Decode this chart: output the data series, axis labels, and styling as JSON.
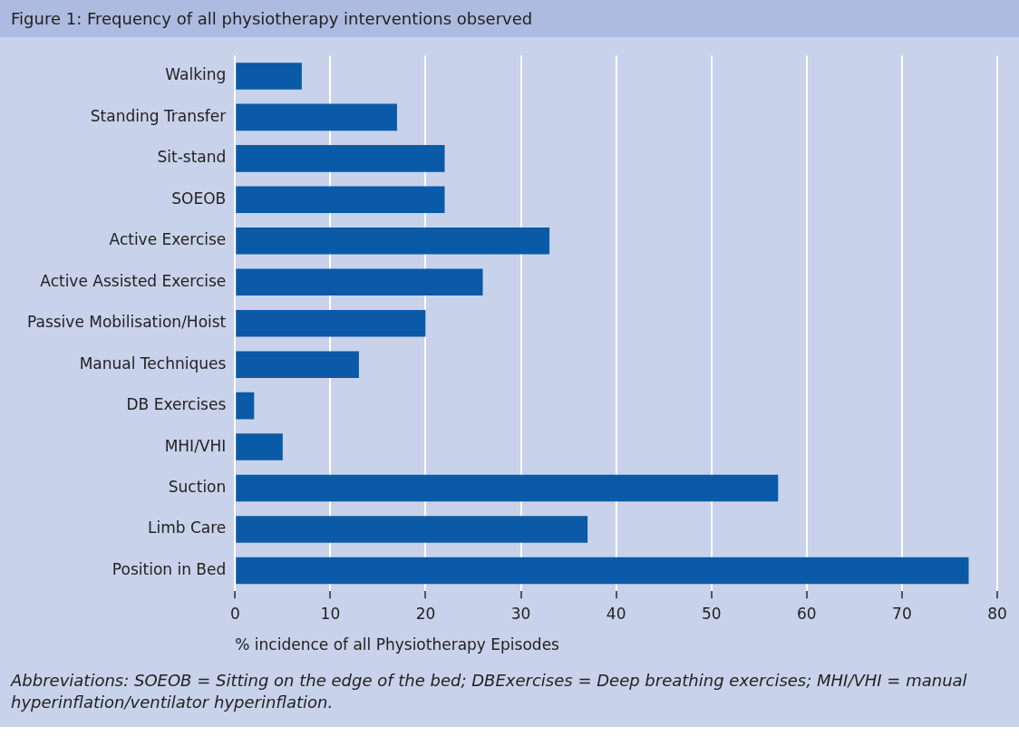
{
  "chart_data": {
    "type": "bar",
    "orientation": "horizontal",
    "title": "Figure 1: Frequency of all physiotherapy interventions observed",
    "xlabel": "% incidence of all Physiotherapy Episodes",
    "categories": [
      "Walking",
      "Standing Transfer",
      "Sit-stand",
      "SOEOB",
      "Active Exercise",
      "Active Assisted Exercise",
      "Passive Mobilisation/Hoist",
      "Manual Techniques",
      "DB Exercises",
      "MHI/VHI",
      "Suction",
      "Limb Care",
      "Position in Bed"
    ],
    "values": [
      7,
      17,
      22,
      22,
      33,
      26,
      20,
      13,
      2,
      5,
      57,
      37,
      77
    ],
    "color": "#0a5aa8",
    "xlim": [
      0,
      80
    ],
    "xticks": [
      0,
      10,
      20,
      30,
      40,
      50,
      60,
      70,
      80
    ],
    "grid": "x",
    "legend": false,
    "annotations": [
      "Abbreviations: SOEOB = Sitting on the edge of the bed; DBExercises = Deep breathing exercises; MHI/VHI = manual hyperinflation/ventilator hyperinflation."
    ]
  }
}
